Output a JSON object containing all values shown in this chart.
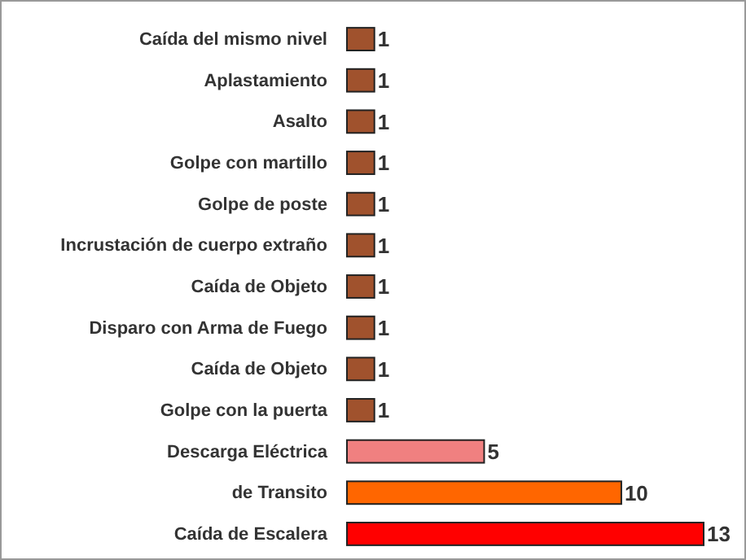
{
  "chart_data": {
    "type": "bar",
    "orientation": "horizontal",
    "data_labels": true,
    "categories": [
      "Caída del mismo nivel",
      "Aplastamiento",
      "Asalto",
      "Golpe con martillo",
      "Golpe de poste",
      "Incrustación de cuerpo extraño",
      "Caída de Objeto",
      "Disparo con Arma de Fuego",
      "Caída de Objeto",
      "Golpe con la puerta",
      "Descarga Eléctrica",
      "de Transito",
      "Caída de Escalera"
    ],
    "values": [
      1,
      1,
      1,
      1,
      1,
      1,
      1,
      1,
      1,
      1,
      5,
      10,
      13
    ],
    "colors": [
      "#a0522d",
      "#a0522d",
      "#a0522d",
      "#a0522d",
      "#a0522d",
      "#a0522d",
      "#a0522d",
      "#a0522d",
      "#a0522d",
      "#a0522d",
      "#f08080",
      "#ff6600",
      "#ff0000"
    ]
  }
}
